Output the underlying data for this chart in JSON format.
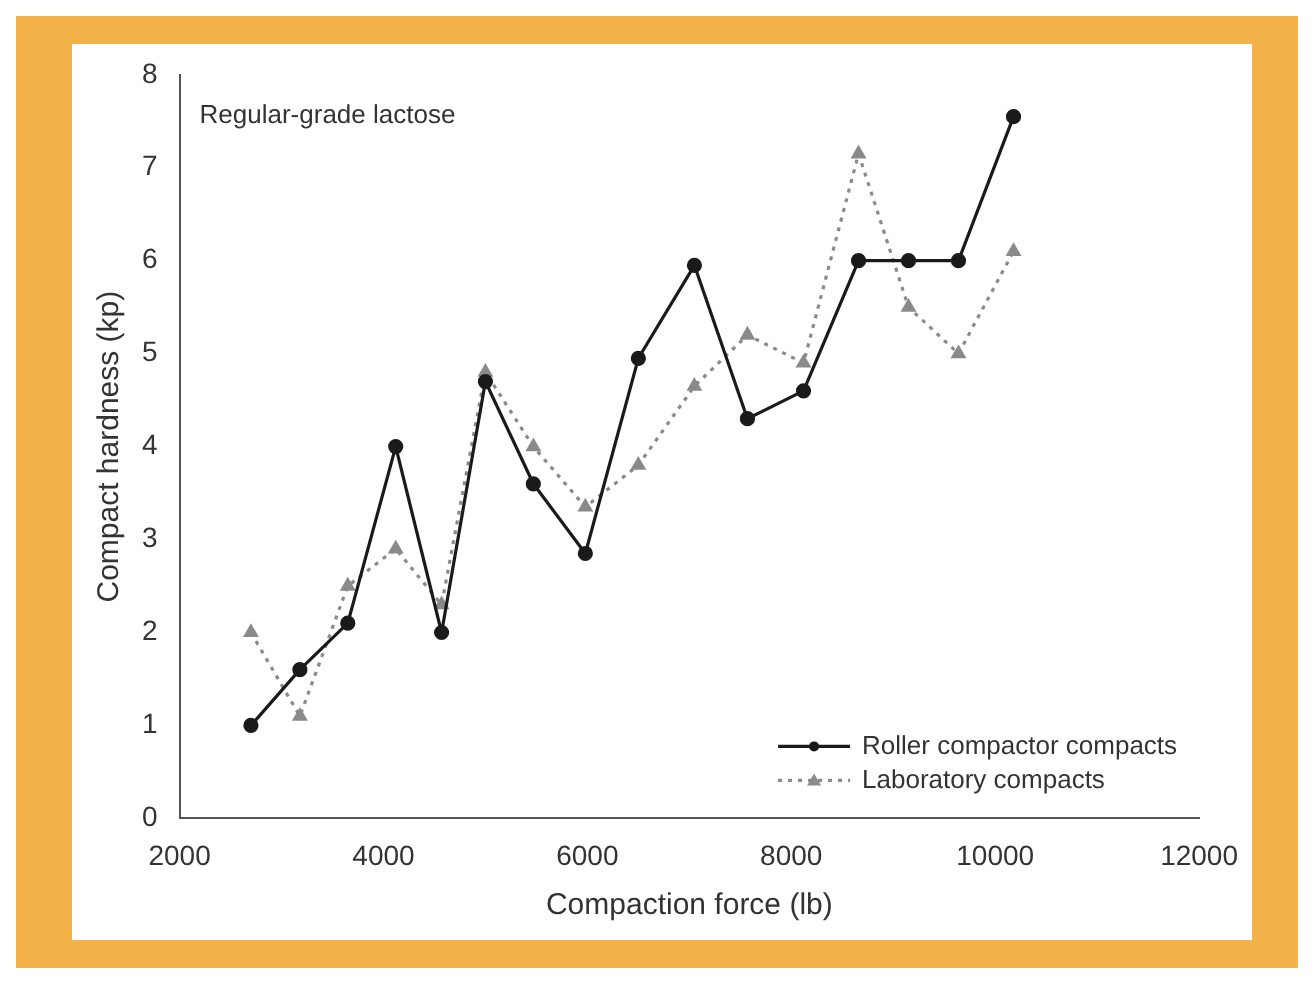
{
  "chart_data": {
    "type": "line",
    "xlabel": "Compaction force (lb)",
    "ylabel": "Compact hardness (kp)",
    "annotations": [
      "Regular-grade lactose"
    ],
    "x": [
      2700,
      3180,
      3650,
      4120,
      4570,
      5000,
      5470,
      5980,
      6500,
      7050,
      7570,
      8120,
      8660,
      9150,
      9640,
      10180
    ],
    "series": [
      {
        "name": "Roller compactor compacts",
        "color": "#1a1a1a",
        "marker": "circle",
        "line_style": "solid",
        "values": [
          1.0,
          1.6,
          2.1,
          4.0,
          2.0,
          4.7,
          3.6,
          2.85,
          4.95,
          5.95,
          4.3,
          4.6,
          6.0,
          6.0,
          6.0,
          7.55
        ]
      },
      {
        "name": "Laboratory compacts",
        "color": "#8a8a8a",
        "marker": "triangle",
        "line_style": "dotted",
        "values": [
          2.0,
          1.1,
          2.5,
          2.9,
          2.3,
          4.8,
          4.0,
          3.35,
          3.8,
          4.65,
          5.2,
          4.9,
          7.15,
          5.5,
          5.0,
          6.1
        ]
      }
    ],
    "xlim": [
      2000,
      12000
    ],
    "xticks": [
      2000,
      4000,
      6000,
      8000,
      10000,
      12000
    ],
    "ylim": [
      0,
      8
    ],
    "yticks": [
      0,
      1,
      2,
      3,
      4,
      5,
      6,
      7,
      8
    ],
    "grid": false,
    "legend": "bottom right"
  }
}
